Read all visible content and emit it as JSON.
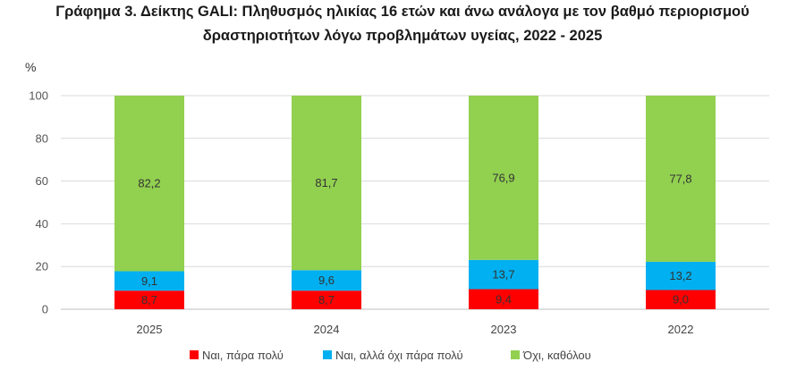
{
  "chart_data": {
    "type": "bar",
    "stacked": true,
    "title_lines": [
      "Γράφημα 3. Δείκτης GALI: Πληθυσμός ηλικίας 16 ετών και άνω ανάλογα με τον βαθμό περιορισμού",
      "δραστηριοτήτων λόγω προβλημάτων υγείας, 2022 - 2025"
    ],
    "ylabel": "%",
    "xlabel": "",
    "ylim": [
      0,
      100
    ],
    "yticks": [
      0,
      20,
      40,
      60,
      80,
      100
    ],
    "grid": true,
    "legend_position": "bottom",
    "categories": [
      "2025",
      "2024",
      "2023",
      "2022"
    ],
    "series": [
      {
        "name": "Ναι, πάρα πολύ",
        "color": "#ff0000",
        "values": [
          8.7,
          8.7,
          9.4,
          9.0
        ],
        "labels": [
          "8,7",
          "8,7",
          "9,4",
          "9,0"
        ]
      },
      {
        "name": "Ναι, αλλά όχι πάρα πολύ",
        "color": "#00b0f0",
        "values": [
          9.1,
          9.6,
          13.7,
          13.2
        ],
        "labels": [
          "9,1",
          "9,6",
          "13,7",
          "13,2"
        ]
      },
      {
        "name": "Όχι, καθόλου",
        "color": "#92d050",
        "values": [
          82.2,
          81.7,
          76.9,
          77.8
        ],
        "labels": [
          "82,2",
          "81,7",
          "76,9",
          "77,8"
        ]
      }
    ]
  }
}
